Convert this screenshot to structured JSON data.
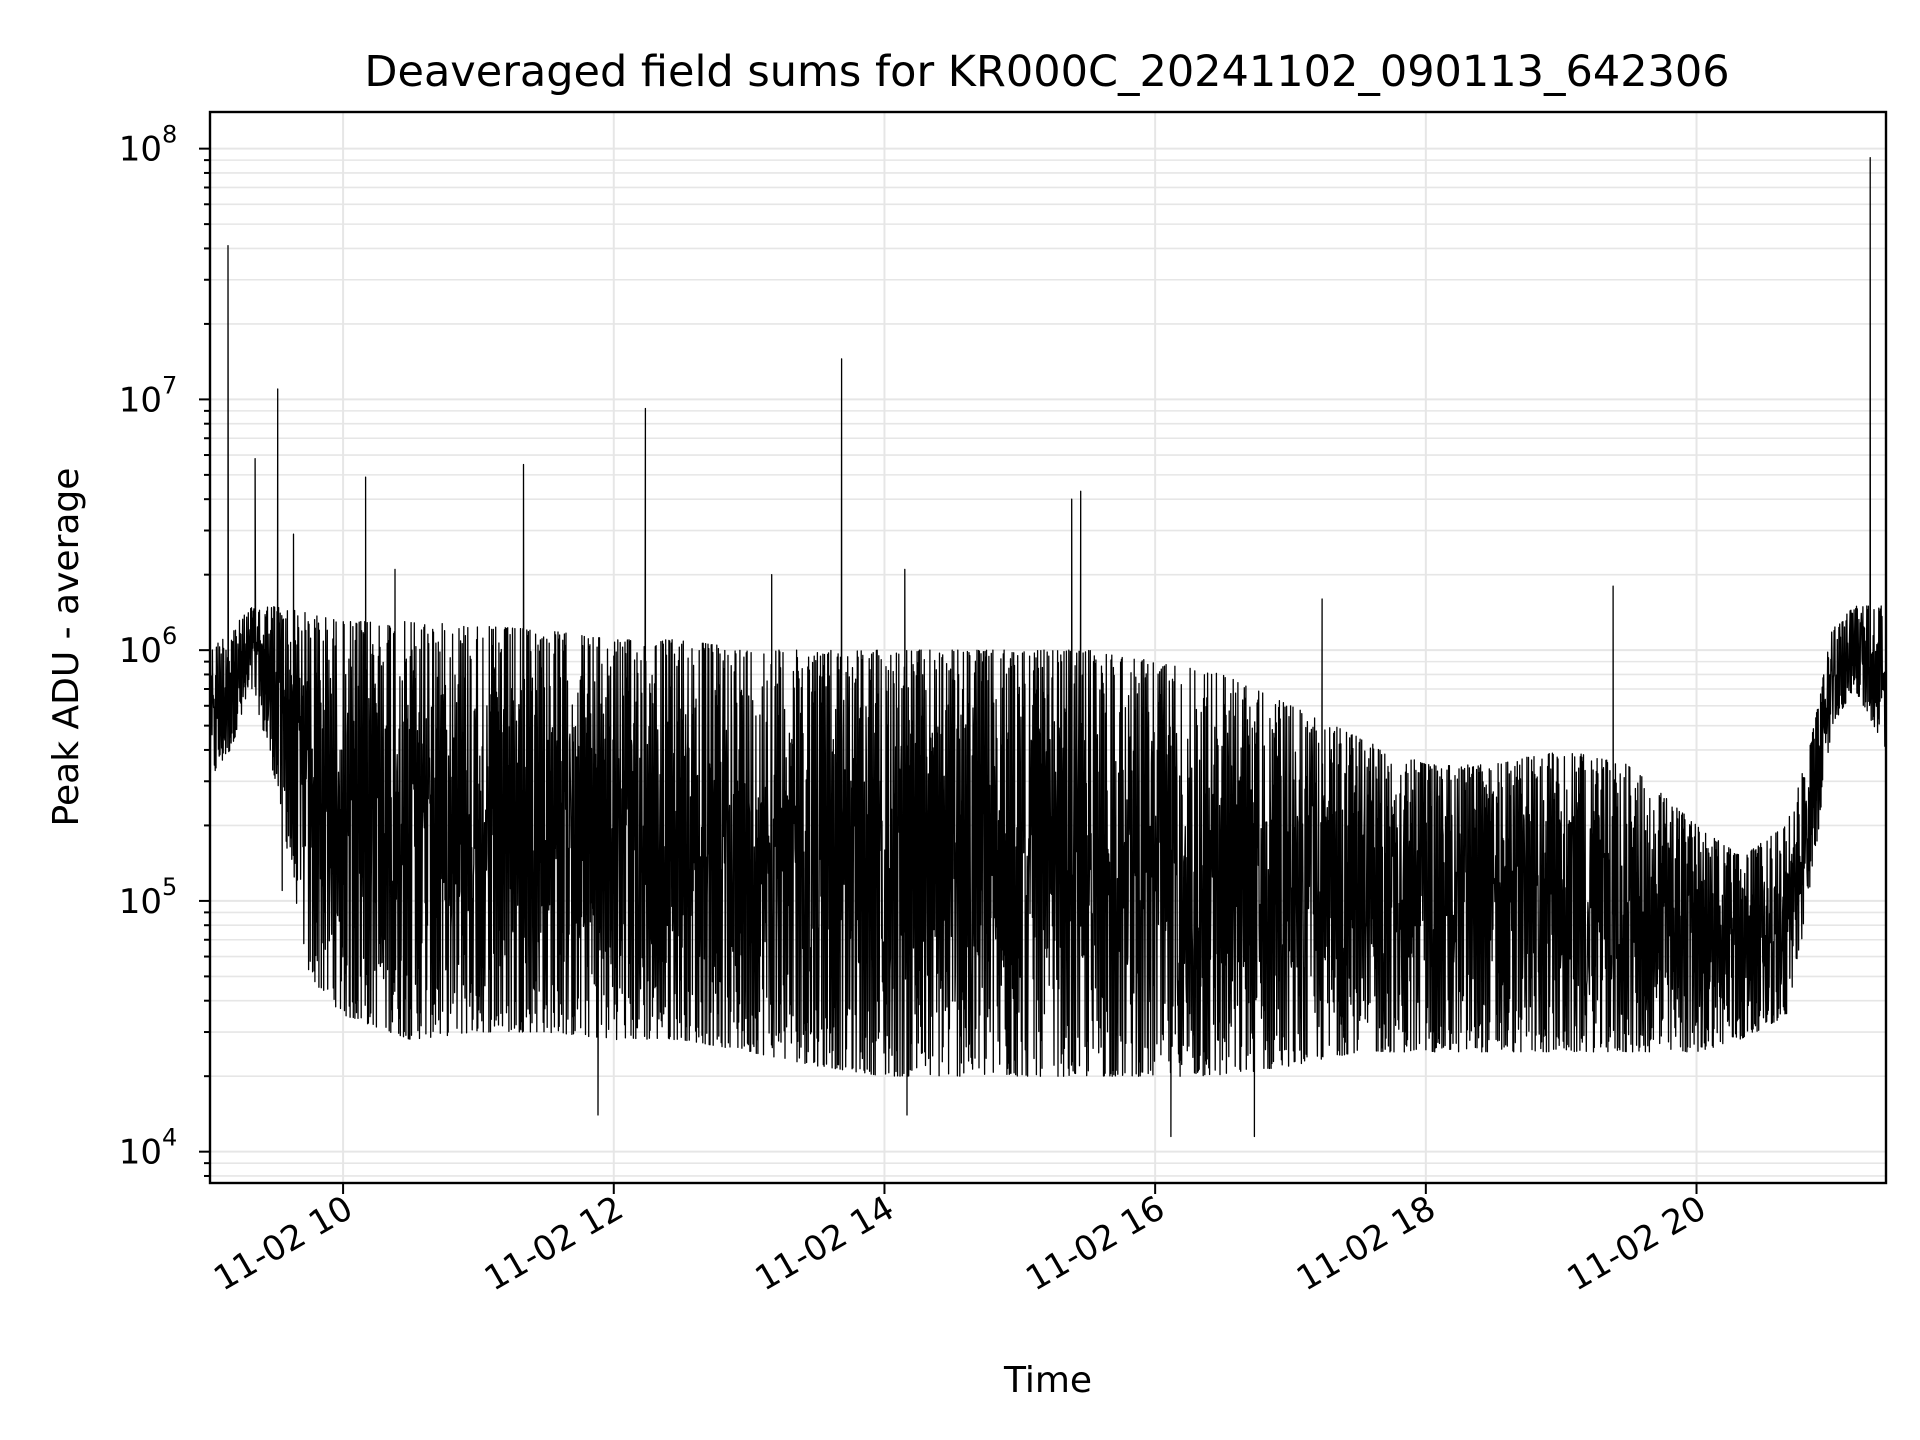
{
  "chart_data": {
    "type": "line",
    "title": "Deaveraged field sums for KR000C_20241102_090113_642306",
    "xlabel": "Time",
    "ylabel": "Peak ADU - average",
    "yscale": "log",
    "ylim": [
      7500,
      140000000
    ],
    "xlim": [
      "2024-11-02 09:01",
      "2024-11-02 21:24"
    ],
    "grid": true,
    "xticks": [
      "11-02 10",
      "11-02 12",
      "11-02 14",
      "11-02 16",
      "11-02 18",
      "11-02 20"
    ],
    "xtick_values": [
      "2024-11-02 10:00",
      "2024-11-02 12:00",
      "2024-11-02 14:00",
      "2024-11-02 16:00",
      "2024-11-02 18:00",
      "2024-11-02 20:00"
    ],
    "yticks": [
      {
        "base": "10",
        "exp": "4",
        "value": 10000
      },
      {
        "base": "10",
        "exp": "5",
        "value": 100000
      },
      {
        "base": "10",
        "exp": "6",
        "value": 1000000
      },
      {
        "base": "10",
        "exp": "7",
        "value": 10000000
      },
      {
        "base": "10",
        "exp": "8",
        "value": 100000000
      }
    ],
    "series": [
      {
        "color": "#000000",
        "envelope": [
          {
            "t": "2024-11-02 09:01",
            "high": 1000000,
            "low": 300000
          },
          {
            "t": "2024-11-02 09:10",
            "high": 1200000,
            "low": 400000
          },
          {
            "t": "2024-11-02 09:20",
            "high": 1500000,
            "low": 700000
          },
          {
            "t": "2024-11-02 09:30",
            "high": 1500000,
            "low": 300000
          },
          {
            "t": "2024-11-02 09:45",
            "high": 1400000,
            "low": 50000
          },
          {
            "t": "2024-11-02 10:00",
            "high": 1300000,
            "low": 35000
          },
          {
            "t": "2024-11-02 10:30",
            "high": 1300000,
            "low": 28000
          },
          {
            "t": "2024-11-02 11:00",
            "high": 1250000,
            "low": 30000
          },
          {
            "t": "2024-11-02 11:30",
            "high": 1200000,
            "low": 30000
          },
          {
            "t": "2024-11-02 12:00",
            "high": 1100000,
            "low": 28000
          },
          {
            "t": "2024-11-02 12:30",
            "high": 1100000,
            "low": 28000
          },
          {
            "t": "2024-11-02 13:00",
            "high": 1000000,
            "low": 25000
          },
          {
            "t": "2024-11-02 13:30",
            "high": 1000000,
            "low": 22000
          },
          {
            "t": "2024-11-02 14:00",
            "high": 1000000,
            "low": 20000
          },
          {
            "t": "2024-11-02 14:30",
            "high": 1000000,
            "low": 20000
          },
          {
            "t": "2024-11-02 15:00",
            "high": 1000000,
            "low": 20000
          },
          {
            "t": "2024-11-02 15:30",
            "high": 1000000,
            "low": 20000
          },
          {
            "t": "2024-11-02 16:00",
            "high": 900000,
            "low": 20000
          },
          {
            "t": "2024-11-02 16:30",
            "high": 800000,
            "low": 20000
          },
          {
            "t": "2024-11-02 17:00",
            "high": 600000,
            "low": 22000
          },
          {
            "t": "2024-11-02 17:30",
            "high": 450000,
            "low": 25000
          },
          {
            "t": "2024-11-02 18:00",
            "high": 350000,
            "low": 25000
          },
          {
            "t": "2024-11-02 18:30",
            "high": 350000,
            "low": 25000
          },
          {
            "t": "2024-11-02 19:00",
            "high": 400000,
            "low": 25000
          },
          {
            "t": "2024-11-02 19:30",
            "high": 350000,
            "low": 25000
          },
          {
            "t": "2024-11-02 20:00",
            "high": 200000,
            "low": 25000
          },
          {
            "t": "2024-11-02 20:20",
            "high": 150000,
            "low": 28000
          },
          {
            "t": "2024-11-02 20:40",
            "high": 200000,
            "low": 35000
          },
          {
            "t": "2024-11-02 20:50",
            "high": 400000,
            "low": 100000
          },
          {
            "t": "2024-11-02 21:00",
            "high": 1200000,
            "low": 500000
          },
          {
            "t": "2024-11-02 21:10",
            "high": 1500000,
            "low": 700000
          },
          {
            "t": "2024-11-02 21:24",
            "high": 1500000,
            "low": 400000
          }
        ],
        "spikes": [
          {
            "t": "2024-11-02 09:09",
            "y": 41000000
          },
          {
            "t": "2024-11-02 09:21",
            "y": 5800000
          },
          {
            "t": "2024-11-02 09:31",
            "y": 11000000
          },
          {
            "t": "2024-11-02 09:38",
            "y": 2900000
          },
          {
            "t": "2024-11-02 10:10",
            "y": 4900000
          },
          {
            "t": "2024-11-02 10:23",
            "y": 2100000
          },
          {
            "t": "2024-11-02 11:20",
            "y": 5500000
          },
          {
            "t": "2024-11-02 12:14",
            "y": 9200000
          },
          {
            "t": "2024-11-02 13:10",
            "y": 2000000
          },
          {
            "t": "2024-11-02 13:41",
            "y": 14500000
          },
          {
            "t": "2024-11-02 14:09",
            "y": 2100000
          },
          {
            "t": "2024-11-02 15:23",
            "y": 4000000
          },
          {
            "t": "2024-11-02 15:27",
            "y": 4300000
          },
          {
            "t": "2024-11-02 17:14",
            "y": 1600000
          },
          {
            "t": "2024-11-02 19:23",
            "y": 1800000
          },
          {
            "t": "2024-11-02 21:17",
            "y": 92000000
          }
        ],
        "dips": [
          {
            "t": "2024-11-02 09:33",
            "y": 110000
          },
          {
            "t": "2024-11-02 11:53",
            "y": 14000
          },
          {
            "t": "2024-11-02 14:10",
            "y": 14000
          },
          {
            "t": "2024-11-02 16:07",
            "y": 11500
          },
          {
            "t": "2024-11-02 16:44",
            "y": 11500
          }
        ]
      }
    ]
  }
}
